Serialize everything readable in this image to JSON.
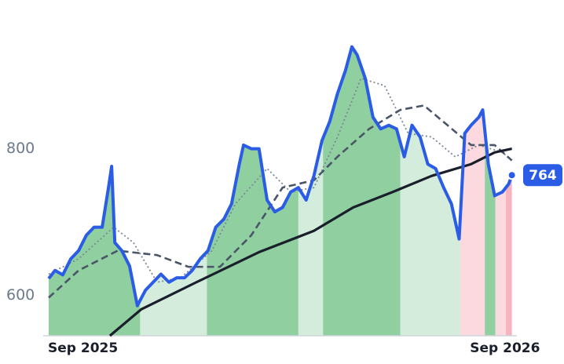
{
  "chart_data": {
    "type": "line",
    "xlim": [
      0,
      13.2
    ],
    "ylim": [
      545,
      1000
    ],
    "xticks": [
      {
        "value": 0,
        "label": "Sep 2025"
      },
      {
        "value": 12,
        "label": "Sep 2026"
      }
    ],
    "yticks": [
      600,
      800
    ],
    "grid": false,
    "bands": [
      {
        "x": [
          0,
          2.6
        ],
        "color": "#8fcfa0"
      },
      {
        "x": [
          2.6,
          4.5
        ],
        "color": "#d3ecdb"
      },
      {
        "x": [
          4.5,
          7.1
        ],
        "color": "#8fcfa0"
      },
      {
        "x": [
          7.1,
          7.8
        ],
        "color": "#d3ecdb"
      },
      {
        "x": [
          7.8,
          10.0
        ],
        "color": "#8fcfa0"
      },
      {
        "x": [
          10.0,
          11.7
        ],
        "color": "#d3ecdb"
      },
      {
        "x": [
          11.7,
          12.4
        ],
        "color": "#fbd9df"
      },
      {
        "x": [
          12.4,
          12.7
        ],
        "color": "#8fcfa0"
      },
      {
        "x": [
          12.7,
          13.0
        ],
        "color": "#fbd9df"
      },
      {
        "x": [
          13.0,
          13.2
        ],
        "color": "#f6b3c0"
      }
    ],
    "series": [
      {
        "color": "#2b5ce6",
        "style": "solid",
        "width": 4,
        "x": [
          0,
          0.18,
          0.4,
          0.63,
          0.85,
          1.07,
          1.29,
          1.52,
          1.7,
          1.79,
          1.88,
          2.08,
          2.3,
          2.52,
          2.75,
          2.97,
          3.19,
          3.42,
          3.64,
          3.86,
          4.08,
          4.31,
          4.53,
          4.75,
          4.98,
          5.2,
          5.42,
          5.54,
          5.76,
          5.98,
          6.21,
          6.43,
          6.65,
          6.88,
          7.1,
          7.32,
          7.54,
          7.77,
          7.99,
          8.21,
          8.44,
          8.62,
          8.77,
          9.0,
          9.22,
          9.44,
          9.67,
          9.89,
          10.11,
          10.33,
          10.56,
          10.78,
          11.0,
          11.23,
          11.45,
          11.67,
          11.83,
          12.01,
          12.23,
          12.34,
          12.5,
          12.68,
          12.9,
          13.08,
          13.17
        ],
        "values": [
          623,
          634,
          628,
          650,
          661,
          682,
          693,
          693,
          747,
          776,
          672,
          661,
          640,
          586,
          607,
          618,
          629,
          618,
          624,
          624,
          634,
          650,
          661,
          693,
          704,
          725,
          779,
          805,
          800,
          800,
          730,
          714,
          720,
          741,
          747,
          730,
          763,
          811,
          837,
          875,
          907,
          939,
          928,
          896,
          843,
          827,
          832,
          827,
          789,
          832,
          816,
          779,
          773,
          747,
          725,
          677,
          821,
          832,
          843,
          853,
          779,
          736,
          741,
          752,
          764
        ]
      },
      {
        "color": "#7d8796",
        "style": "dotted",
        "width": 1.8,
        "x": [
          0,
          0.85,
          1.85,
          2.41,
          3.08,
          3.75,
          4.64,
          5.31,
          6.21,
          6.88,
          7.54,
          8.21,
          8.88,
          9.55,
          10.22,
          10.89,
          11.56,
          12.23,
          12.9,
          13.17
        ],
        "values": [
          629,
          650,
          693,
          672,
          618,
          624,
          661,
          725,
          773,
          741,
          747,
          816,
          896,
          886,
          821,
          816,
          789,
          805,
          795,
          784
        ]
      },
      {
        "color": "#4a5568",
        "style": "dashed",
        "width": 2.6,
        "x": [
          0,
          0.85,
          1.96,
          3.08,
          3.97,
          4.87,
          5.76,
          6.65,
          7.54,
          8.21,
          9.11,
          10.0,
          10.67,
          11.34,
          12.01,
          12.68,
          13.17
        ],
        "values": [
          597,
          634,
          661,
          655,
          639,
          639,
          682,
          747,
          757,
          789,
          827,
          853,
          859,
          832,
          805,
          805,
          784
        ]
      },
      {
        "color": "#1a1f2b",
        "style": "solid",
        "width": 3.2,
        "x": [
          1.74,
          2.63,
          4.2,
          5.98,
          7.54,
          8.66,
          9.78,
          10.89,
          12.01,
          12.68,
          13.17
        ],
        "values": [
          545,
          581,
          618,
          659,
          688,
          720,
          741,
          763,
          779,
          795,
          800
        ]
      }
    ]
  }
}
